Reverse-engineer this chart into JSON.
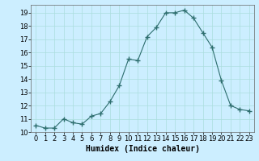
{
  "x": [
    0,
    1,
    2,
    3,
    4,
    5,
    6,
    7,
    8,
    9,
    10,
    11,
    12,
    13,
    14,
    15,
    16,
    17,
    18,
    19,
    20,
    21,
    22,
    23
  ],
  "y": [
    10.5,
    10.3,
    10.3,
    11.0,
    10.7,
    10.6,
    11.2,
    11.4,
    12.3,
    13.5,
    15.5,
    15.4,
    17.2,
    17.9,
    19.0,
    19.0,
    19.2,
    18.6,
    17.5,
    16.4,
    13.9,
    12.0,
    11.7,
    11.6
  ],
  "line_color": "#2d6e6e",
  "marker": "+",
  "marker_size": 4,
  "bg_color": "#cceeff",
  "grid_color": "#aadddd",
  "xlabel": "Humidex (Indice chaleur)",
  "xlim": [
    -0.5,
    23.5
  ],
  "ylim": [
    10,
    19.6
  ],
  "yticks": [
    10,
    11,
    12,
    13,
    14,
    15,
    16,
    17,
    18,
    19
  ],
  "xticks": [
    0,
    1,
    2,
    3,
    4,
    5,
    6,
    7,
    8,
    9,
    10,
    11,
    12,
    13,
    14,
    15,
    16,
    17,
    18,
    19,
    20,
    21,
    22,
    23
  ],
  "xlabel_fontsize": 7,
  "tick_fontsize": 6
}
